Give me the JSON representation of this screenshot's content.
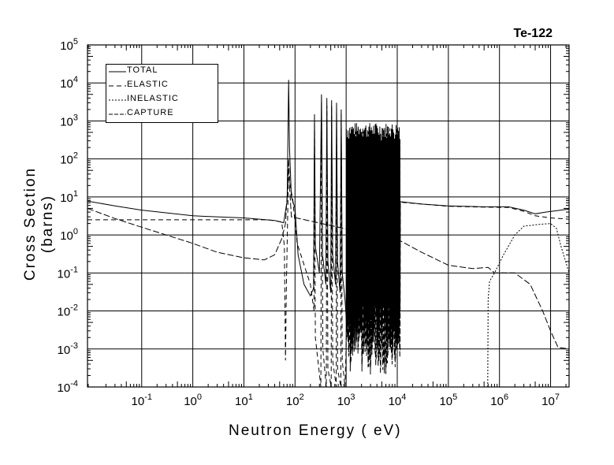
{
  "chart_data": {
    "type": "line",
    "title": "Te-122",
    "xlabel": "Neutron Energy ( eV)",
    "ylabel": "Cross Section (barns)",
    "xscale": "log",
    "yscale": "log",
    "xlim": [
      0.0087,
      23000000
    ],
    "ylim": [
      0.0001,
      100000
    ],
    "grid": true,
    "legend_position": "top-left",
    "x_ticks": [
      {
        "base": "10",
        "exp": "-1",
        "value": 0.1
      },
      {
        "base": "10",
        "exp": "0",
        "value": 1
      },
      {
        "base": "10",
        "exp": "1",
        "value": 10
      },
      {
        "base": "10",
        "exp": "2",
        "value": 100
      },
      {
        "base": "10",
        "exp": "3",
        "value": 1000
      },
      {
        "base": "10",
        "exp": "4",
        "value": 10000
      },
      {
        "base": "10",
        "exp": "5",
        "value": 100000
      },
      {
        "base": "10",
        "exp": "6",
        "value": 1000000
      },
      {
        "base": "10",
        "exp": "7",
        "value": 10000000
      }
    ],
    "y_ticks": [
      {
        "base": "10",
        "exp": "-4",
        "value": 0.0001
      },
      {
        "base": "10",
        "exp": "-3",
        "value": 0.001
      },
      {
        "base": "10",
        "exp": "-2",
        "value": 0.01
      },
      {
        "base": "10",
        "exp": "-1",
        "value": 0.1
      },
      {
        "base": "10",
        "exp": "0",
        "value": 1
      },
      {
        "base": "10",
        "exp": "1",
        "value": 10
      },
      {
        "base": "10",
        "exp": "2",
        "value": 100
      },
      {
        "base": "10",
        "exp": "3",
        "value": 1000
      },
      {
        "base": "10",
        "exp": "4",
        "value": 10000
      },
      {
        "base": "10",
        "exp": "5",
        "value": 100000
      }
    ],
    "series": [
      {
        "name": "TOTAL",
        "dash": "solid",
        "points": [
          [
            0.0087,
            7.8
          ],
          [
            0.03,
            5.8
          ],
          [
            0.1,
            4.5
          ],
          [
            1,
            3.2
          ],
          [
            10,
            2.8
          ],
          [
            40,
            2.4
          ],
          [
            60,
            2.1
          ],
          [
            70,
            8
          ],
          [
            75,
            12000
          ],
          [
            78,
            200
          ],
          [
            85,
            10
          ],
          [
            100,
            5
          ],
          [
            115,
            0.3
          ],
          [
            150,
            0.05
          ],
          [
            200,
            0.025
          ],
          [
            230,
            0.04
          ],
          [
            240,
            1500
          ],
          [
            250,
            0.5
          ],
          [
            300,
            0.1
          ],
          [
            330,
            5000
          ],
          [
            345,
            0.3
          ],
          [
            400,
            0.05
          ],
          [
            420,
            4000
          ],
          [
            440,
            0.2
          ],
          [
            500,
            0.03
          ],
          [
            520,
            3500
          ],
          [
            545,
            0.3
          ],
          [
            620,
            0.05
          ],
          [
            650,
            3000
          ],
          [
            680,
            0.2
          ],
          [
            760,
            0.03
          ],
          [
            800,
            2000
          ],
          [
            840,
            0.1
          ],
          [
            950,
            0.02
          ]
        ],
        "dense_band": {
          "from": 1000,
          "to": 11500,
          "count": 70,
          "peak_min": 300,
          "peak_max": 900,
          "valley_min": 0.001,
          "valley_max": 0.02
        },
        "tail": [
          [
            11500,
            7.5
          ],
          [
            30000,
            6.5
          ],
          [
            100000,
            5.8
          ],
          [
            500000,
            5.5
          ],
          [
            1500000,
            5.5
          ],
          [
            3000000,
            4.5
          ],
          [
            5000000,
            3.6
          ],
          [
            8000000,
            4
          ],
          [
            23000000,
            4.8
          ]
        ]
      },
      {
        "name": "ELASTIC",
        "dash": "dashed",
        "points": [
          [
            0.0087,
            2.5
          ],
          [
            1,
            2.5
          ],
          [
            30,
            2.5
          ],
          [
            55,
            2.2
          ],
          [
            62,
            0.5
          ],
          [
            65,
            0.0005
          ],
          [
            68,
            0.05
          ],
          [
            75,
            80
          ],
          [
            80,
            20
          ],
          [
            90,
            9
          ],
          [
            110,
            0.6
          ],
          [
            200,
            0.05
          ],
          [
            235,
            0.01
          ],
          [
            240,
            1000
          ],
          [
            250,
            0.002
          ],
          [
            320,
            0.0001
          ],
          [
            330,
            3000
          ],
          [
            350,
            0.001
          ],
          [
            410,
            0.0001
          ],
          [
            420,
            2500
          ],
          [
            440,
            0.0003
          ],
          [
            510,
            0.0001
          ],
          [
            520,
            2500
          ],
          [
            545,
            0.0005
          ],
          [
            640,
            0.0001
          ],
          [
            650,
            2000
          ],
          [
            680,
            0.0003
          ],
          [
            790,
            0.0001
          ],
          [
            800,
            1500
          ],
          [
            840,
            0.0005
          ],
          [
            950,
            0.0001
          ]
        ],
        "dense_band": {
          "from": 1000,
          "to": 11500,
          "count": 70,
          "peak_min": 200,
          "peak_max": 700,
          "valley_min": 0.0002,
          "valley_max": 0.005
        },
        "tail": [
          [
            11500,
            7.3
          ],
          [
            30000,
            6.5
          ],
          [
            100000,
            5.7
          ],
          [
            500000,
            5.4
          ],
          [
            1500000,
            5.3
          ],
          [
            3000000,
            4.2
          ],
          [
            5000000,
            3.2
          ],
          [
            10000000,
            2.8
          ],
          [
            23000000,
            2.6
          ]
        ]
      },
      {
        "name": "INELASTIC",
        "dash": "dotted",
        "points": [
          [
            590000,
            0.0001
          ],
          [
            600000,
            0.02
          ],
          [
            640000,
            0.06
          ],
          [
            800000,
            0.1
          ],
          [
            1200000,
            0.3
          ],
          [
            2000000,
            1
          ],
          [
            3000000,
            1.7
          ],
          [
            6000000,
            1.9
          ],
          [
            10000000,
            2
          ],
          [
            13000000,
            1.5
          ],
          [
            16000000,
            0.5
          ],
          [
            23000000,
            0.1
          ]
        ]
      },
      {
        "name": "CAPTURE",
        "dash": "dashdash",
        "points": [
          [
            0.0087,
            5
          ],
          [
            0.03,
            2.7
          ],
          [
            0.1,
            1.6
          ],
          [
            1,
            0.6
          ],
          [
            3,
            0.35
          ],
          [
            10,
            0.25
          ],
          [
            25,
            0.22
          ],
          [
            40,
            0.3
          ],
          [
            55,
            0.8
          ],
          [
            65,
            2
          ],
          [
            72,
            20
          ],
          [
            75,
            100
          ],
          [
            78,
            20
          ],
          [
            85,
            3
          ],
          [
            11500,
            0.7
          ],
          [
            30000,
            0.35
          ],
          [
            100000,
            0.16
          ],
          [
            300000,
            0.13
          ],
          [
            600000,
            0.14
          ],
          [
            800000,
            0.1
          ],
          [
            2000000,
            0.1
          ],
          [
            4000000,
            0.05
          ],
          [
            7000000,
            0.01
          ],
          [
            10000000,
            0.003
          ],
          [
            14000000,
            0.0011
          ],
          [
            23000000,
            0.001
          ]
        ]
      }
    ]
  }
}
